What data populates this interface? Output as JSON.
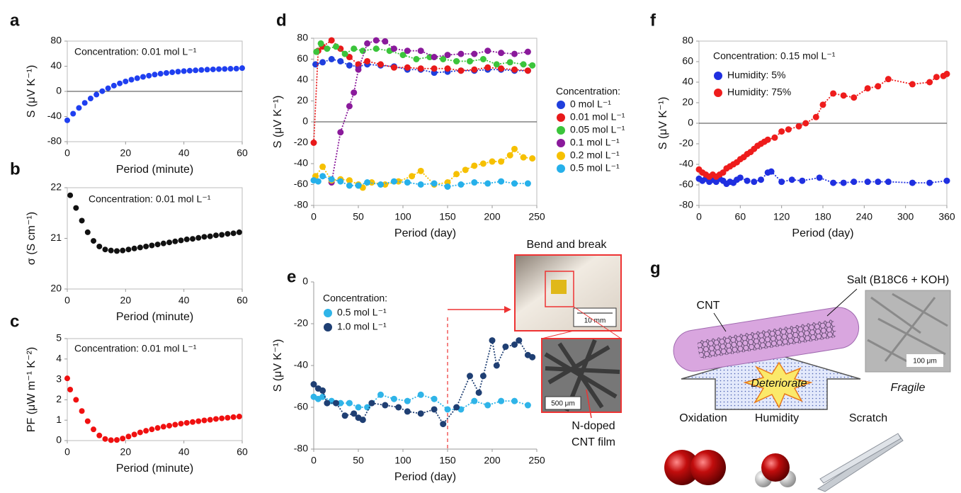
{
  "chart_data": [
    {
      "type": "scatter",
      "label": "a",
      "annotation": "Concentration: 0.01 mol L⁻¹",
      "xlabel": "Period (minute)",
      "ylabel": "S (μV K⁻¹)",
      "xlim": [
        0,
        60
      ],
      "xticks": [
        0,
        20,
        40,
        60
      ],
      "ylim": [
        -80,
        80
      ],
      "yticks": [
        -80,
        -40,
        0,
        40,
        80
      ],
      "frame": true,
      "zero_line": true,
      "series": [
        {
          "color": "#1f3ff0",
          "x": [
            0,
            2,
            4,
            6,
            8,
            10,
            12,
            14,
            16,
            18,
            20,
            22,
            24,
            26,
            28,
            30,
            32,
            34,
            36,
            38,
            40,
            42,
            44,
            46,
            48,
            50,
            52,
            54,
            56,
            58,
            60
          ],
          "values": [
            -46,
            -35.5,
            -26.3,
            -18.3,
            -11.3,
            -5.1,
            0.3,
            5,
            9.1,
            12.7,
            15.8,
            18.6,
            21,
            23.1,
            25,
            26.7,
            28.1,
            29.3,
            30.4,
            31.4,
            32.2,
            32.9,
            33.5,
            34.1,
            34.6,
            35,
            35.4,
            35.7,
            36,
            36.2,
            37
          ]
        }
      ]
    },
    {
      "type": "scatter",
      "label": "b",
      "annotation": "Concentration: 0.01 mol L⁻¹",
      "xlabel": "Period (minute)",
      "ylabel": "σ (S cm⁻¹)",
      "xlim": [
        0,
        60
      ],
      "xticks": [
        0,
        20,
        40,
        60
      ],
      "ylim": [
        20,
        22
      ],
      "yticks": [
        20,
        21,
        22
      ],
      "frame": true,
      "series": [
        {
          "color": "#111111",
          "x": [
            1,
            3,
            5,
            7,
            9,
            11,
            13,
            15,
            17,
            19,
            21,
            23,
            25,
            27,
            29,
            31,
            33,
            35,
            37,
            39,
            41,
            43,
            45,
            47,
            49,
            51,
            53,
            55,
            57,
            59
          ],
          "values": [
            21.85,
            21.6,
            21.35,
            21.12,
            20.95,
            20.84,
            20.78,
            20.76,
            20.75,
            20.76,
            20.78,
            20.8,
            20.82,
            20.84,
            20.86,
            20.88,
            20.9,
            20.92,
            20.94,
            20.96,
            20.98,
            20.99,
            21.01,
            21.03,
            21.04,
            21.06,
            21.07,
            21.09,
            21.1,
            21.12
          ]
        }
      ]
    },
    {
      "type": "scatter",
      "label": "c",
      "annotation": "Concentration: 0.01 mol L⁻¹",
      "xlabel": "Period (minute)",
      "ylabel": "PF (μW m⁻¹ K⁻²)",
      "xlim": [
        0,
        60
      ],
      "xticks": [
        0,
        20,
        40,
        60
      ],
      "ylim": [
        0,
        5
      ],
      "yticks": [
        0,
        1,
        2,
        3,
        4,
        5
      ],
      "frame": true,
      "series": [
        {
          "color": "#f01010",
          "x": [
            0,
            1,
            3,
            5,
            7,
            9,
            11,
            13,
            15,
            17,
            19,
            21,
            23,
            25,
            27,
            29,
            31,
            33,
            35,
            37,
            39,
            41,
            43,
            45,
            47,
            49,
            51,
            53,
            55,
            57,
            59
          ],
          "values": [
            3.05,
            2.5,
            2,
            1.45,
            0.95,
            0.55,
            0.25,
            0.08,
            0.02,
            0.03,
            0.1,
            0.2,
            0.3,
            0.4,
            0.48,
            0.55,
            0.62,
            0.68,
            0.73,
            0.78,
            0.83,
            0.87,
            0.91,
            0.95,
            0.99,
            1.02,
            1.06,
            1.09,
            1.12,
            1.15,
            1.18
          ]
        }
      ]
    },
    {
      "type": "scatter",
      "label": "d",
      "legend_title": "Concentration:",
      "xlabel": "Period (day)",
      "ylabel": "S (μV K⁻¹)",
      "xlim": [
        0,
        250
      ],
      "xticks": [
        0,
        50,
        100,
        150,
        200,
        250
      ],
      "ylim": [
        -80,
        80
      ],
      "yticks": [
        -80,
        -60,
        -40,
        -20,
        0,
        20,
        40,
        60,
        80
      ],
      "frame": true,
      "zero_line": true,
      "trend": true,
      "series": [
        {
          "name": "0 mol L⁻¹",
          "color": "#1f3fdd",
          "x": [
            2,
            10,
            20,
            30,
            40,
            50,
            60,
            75,
            90,
            105,
            120,
            135,
            150,
            165,
            180,
            195,
            210,
            225,
            240
          ],
          "values": [
            55,
            57,
            60,
            58,
            54,
            53,
            55,
            54,
            53,
            50,
            50,
            47,
            48,
            49,
            49,
            50,
            50,
            49,
            49
          ]
        },
        {
          "name": "0.01 mol L⁻¹",
          "color": "#e8191a",
          "x": [
            0,
            5,
            10,
            20,
            30,
            40,
            50,
            60,
            75,
            90,
            105,
            120,
            135,
            150,
            165,
            180,
            195,
            210,
            225,
            240
          ],
          "values": [
            -20,
            68,
            72,
            78,
            70,
            62,
            55,
            58,
            55,
            52,
            52,
            51,
            51,
            51,
            49,
            50,
            52,
            51,
            50,
            49
          ]
        },
        {
          "name": "0.05 mol L⁻¹",
          "color": "#3bc43b",
          "x": [
            3,
            8,
            15,
            25,
            35,
            45,
            55,
            70,
            85,
            100,
            115,
            130,
            145,
            160,
            175,
            190,
            205,
            220,
            235,
            245
          ],
          "values": [
            67,
            75,
            70,
            72,
            65,
            70,
            68,
            70,
            68,
            64,
            60,
            62,
            60,
            58,
            58,
            60,
            55,
            57,
            55,
            54
          ]
        },
        {
          "name": "0.1 mol L⁻¹",
          "color": "#8a1a9b",
          "x": [
            20,
            30,
            40,
            45,
            50,
            60,
            70,
            80,
            90,
            105,
            120,
            135,
            150,
            165,
            180,
            195,
            210,
            225,
            240
          ],
          "values": [
            -58,
            -10,
            15,
            28,
            50,
            75,
            78,
            77,
            70,
            68,
            68,
            62,
            64,
            65,
            65,
            68,
            66,
            65,
            67
          ]
        },
        {
          "name": "0.2 mol L⁻¹",
          "color": "#f6c000",
          "x": [
            2,
            10,
            20,
            30,
            40,
            50,
            55,
            65,
            80,
            95,
            110,
            120,
            135,
            150,
            160,
            170,
            180,
            190,
            200,
            210,
            220,
            225,
            235,
            245
          ],
          "values": [
            -52,
            -43,
            -56,
            -55,
            -56,
            -60,
            -63,
            -58,
            -60,
            -57,
            -52,
            -47,
            -60,
            -58,
            -50,
            -46,
            -42,
            -40,
            -38,
            -38,
            -32,
            -26,
            -34,
            -35
          ]
        },
        {
          "name": "0.5 mol L⁻¹",
          "color": "#26b0ea",
          "x": [
            0,
            5,
            10,
            20,
            30,
            40,
            50,
            60,
            75,
            90,
            105,
            120,
            135,
            150,
            165,
            180,
            195,
            210,
            225,
            240
          ],
          "values": [
            -56,
            -57,
            -52,
            -55,
            -57,
            -61,
            -61,
            -58,
            -60,
            -57,
            -58,
            -60,
            -59,
            -62,
            -60,
            -58,
            -59,
            -57,
            -59,
            -59
          ]
        }
      ]
    },
    {
      "type": "scatter",
      "label": "e",
      "legend_title": "Concentration:",
      "xlabel": "Period (day)",
      "ylabel": "S (μV K⁻¹)",
      "xlim": [
        0,
        250
      ],
      "xticks": [
        0,
        50,
        100,
        150,
        200,
        250
      ],
      "ylim": [
        -80,
        0
      ],
      "yticks": [
        -80,
        -60,
        -40,
        -20,
        0
      ],
      "frame": false,
      "trend": true,
      "marker_x": 150,
      "insets": {
        "top_title": "Bend and break",
        "top_scale": "10 mm",
        "bottom_scale": "500 μm",
        "bottom_caption": [
          "N-doped",
          "CNT film"
        ]
      },
      "series": [
        {
          "name": "0.5 mol L⁻¹",
          "color": "#2fb4e8",
          "x": [
            0,
            5,
            10,
            20,
            30,
            40,
            50,
            60,
            75,
            90,
            105,
            120,
            135,
            150,
            165,
            180,
            195,
            210,
            225,
            240
          ],
          "values": [
            -55,
            -56,
            -55,
            -57,
            -58,
            -58,
            -60,
            -60,
            -54,
            -56,
            -57,
            -54,
            -56,
            -61,
            -61,
            -57,
            -59,
            -57,
            -57,
            -59
          ]
        },
        {
          "name": "1.0 mol L⁻¹",
          "color": "#1f3f73",
          "x": [
            0,
            5,
            10,
            15,
            25,
            35,
            45,
            50,
            55,
            65,
            80,
            95,
            105,
            120,
            135,
            145,
            160,
            175,
            185,
            190,
            200,
            205,
            215,
            225,
            230,
            240,
            245
          ],
          "values": [
            -49,
            -51,
            -52,
            -58,
            -58,
            -64,
            -63,
            -65,
            -66,
            -58,
            -59,
            -60,
            -62,
            -63,
            -61,
            -68,
            -60,
            -45,
            -53,
            -45,
            -28,
            -40,
            -31,
            -30,
            -28,
            -35,
            -36
          ]
        }
      ]
    },
    {
      "type": "scatter",
      "label": "f",
      "annotation": "Concentration: 0.15 mol L⁻¹",
      "xlabel": "Period (day)",
      "ylabel": "S (μV K⁻¹)",
      "xlim": [
        0,
        360
      ],
      "xticks": [
        0,
        60,
        120,
        180,
        240,
        300,
        360
      ],
      "ylim": [
        -80,
        80
      ],
      "yticks": [
        -80,
        -60,
        -40,
        -20,
        0,
        20,
        40,
        60,
        80
      ],
      "frame": true,
      "zero_line": true,
      "trend": true,
      "series": [
        {
          "name": "Humidity: 5%",
          "color": "#1f2fe0",
          "x": [
            0,
            5,
            10,
            15,
            20,
            25,
            30,
            35,
            40,
            45,
            50,
            55,
            60,
            70,
            80,
            90,
            100,
            105,
            120,
            135,
            150,
            175,
            195,
            210,
            225,
            245,
            260,
            275,
            310,
            335,
            360
          ],
          "values": [
            -54,
            -56,
            -54,
            -57,
            -55,
            -57,
            -54,
            -56,
            -59,
            -57,
            -58,
            -55,
            -53,
            -56,
            -57,
            -55,
            -48,
            -47,
            -57,
            -55,
            -56,
            -53,
            -58,
            -58,
            -57,
            -57,
            -57,
            -57,
            -58,
            -58,
            -56
          ]
        },
        {
          "name": "Humidity: 75%",
          "color": "#ee1c1c",
          "x": [
            0,
            5,
            10,
            15,
            20,
            25,
            30,
            35,
            40,
            45,
            50,
            55,
            60,
            65,
            70,
            75,
            80,
            85,
            90,
            95,
            100,
            110,
            120,
            130,
            145,
            155,
            170,
            180,
            195,
            210,
            225,
            245,
            260,
            275,
            310,
            335,
            345,
            355,
            360
          ],
          "values": [
            -45,
            -48,
            -50,
            -52,
            -50,
            -52,
            -50,
            -48,
            -44,
            -42,
            -40,
            -38,
            -35,
            -33,
            -30,
            -28,
            -25,
            -22,
            -20,
            -18,
            -16,
            -14,
            -8,
            -6,
            -3,
            0,
            6,
            18,
            29,
            27,
            25,
            34,
            36,
            43,
            38,
            40,
            45,
            46,
            48
          ]
        }
      ]
    }
  ],
  "diagram": {
    "label": "g",
    "cnt": "CNT",
    "salt": "Salt (B18C6 + KOH)",
    "center": "Deteriorate",
    "micrograph_scale": "100 μm",
    "micrograph_caption": "Fragile",
    "factors": [
      "Oxidation",
      "Humidity",
      "Scratch"
    ]
  }
}
